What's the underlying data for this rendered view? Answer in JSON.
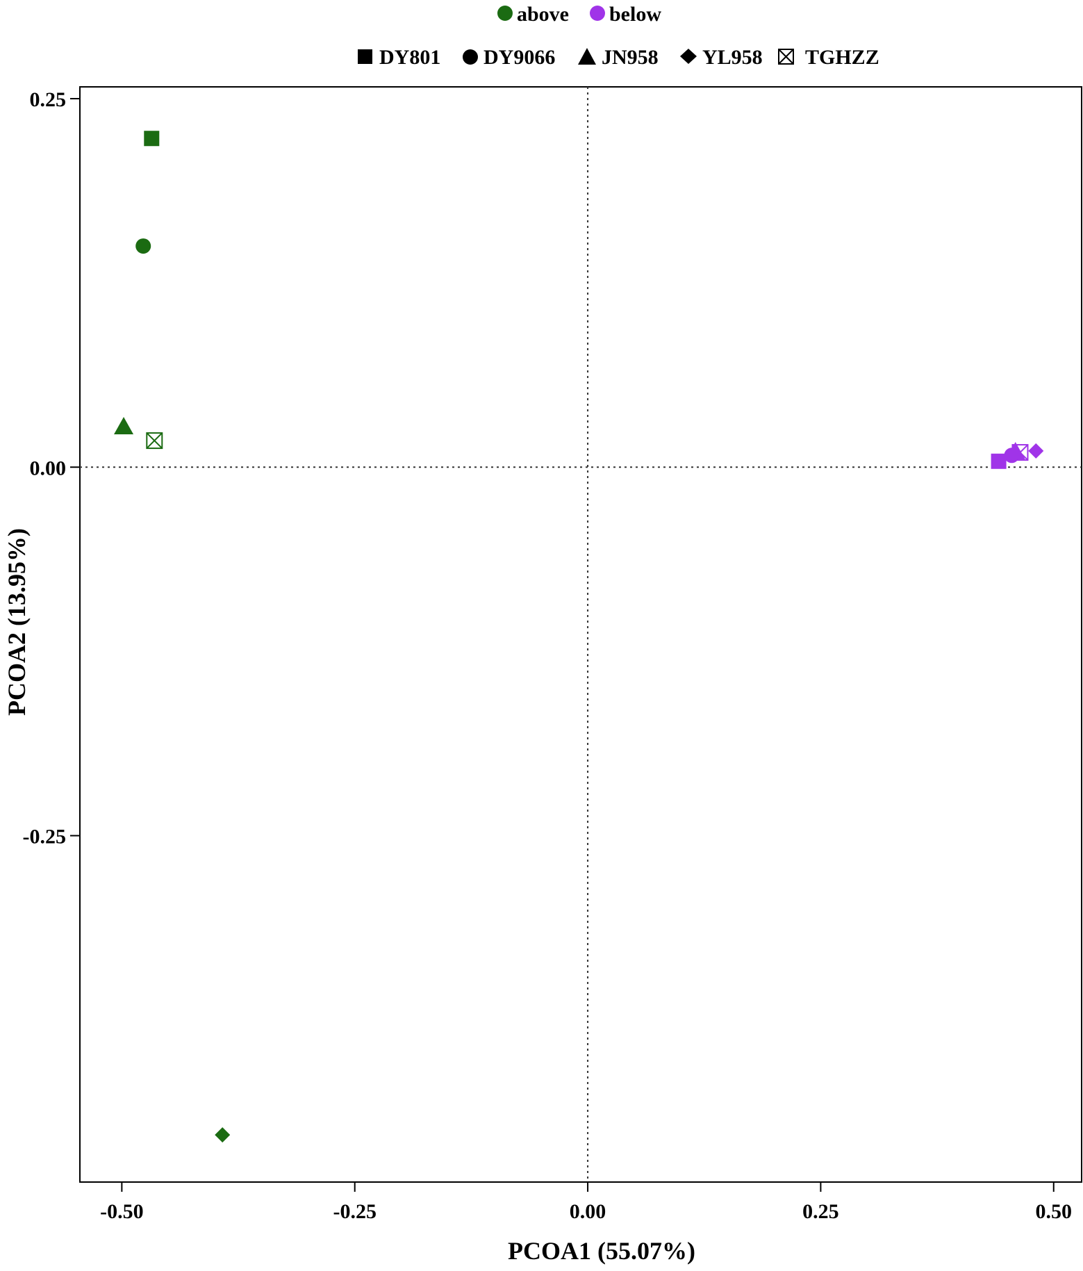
{
  "colors": {
    "above": "#1b6b12",
    "below": "#a034e8",
    "axis": "#000000"
  },
  "legend": {
    "groups": [
      {
        "key": "above",
        "label": "above"
      },
      {
        "key": "below",
        "label": "below"
      }
    ],
    "varieties": [
      {
        "key": "DY801",
        "label": "DY801",
        "shape": "square"
      },
      {
        "key": "DY9066",
        "label": "DY9066",
        "shape": "circle"
      },
      {
        "key": "JN958",
        "label": "JN958",
        "shape": "triangle"
      },
      {
        "key": "YL958",
        "label": "YL958",
        "shape": "diamond"
      },
      {
        "key": "TGHZZ",
        "label": "TGHZZ",
        "shape": "boxed-x"
      }
    ]
  },
  "chart_data": {
    "type": "scatter",
    "title": "",
    "xlabel": "PCOA1 (55.07%)",
    "ylabel": "PCOA2 (13.95%)",
    "xlim": [
      -0.545,
      0.53
    ],
    "ylim": [
      -0.485,
      0.258
    ],
    "xticks": [
      -0.5,
      -0.25,
      0.0,
      0.25,
      0.5
    ],
    "xtick_labels": [
      "-0.50",
      "-0.25",
      "0.00",
      "0.25",
      "0.50"
    ],
    "yticks": [
      -0.25,
      0.0,
      0.25
    ],
    "ytick_labels": [
      "-0.25",
      "0.00",
      "0.25"
    ],
    "reference_lines": {
      "x": 0.0,
      "y": 0.0,
      "style": "dotted"
    },
    "grid": false,
    "legend_position": "top",
    "series": [
      {
        "name": "above",
        "points": [
          {
            "variety": "DY801",
            "x": -0.468,
            "y": 0.223
          },
          {
            "variety": "DY9066",
            "x": -0.477,
            "y": 0.15
          },
          {
            "variety": "JN958",
            "x": -0.498,
            "y": 0.027
          },
          {
            "variety": "TGHZZ",
            "x": -0.465,
            "y": 0.018
          },
          {
            "variety": "YL958",
            "x": -0.392,
            "y": -0.453
          }
        ]
      },
      {
        "name": "below",
        "points": [
          {
            "variety": "DY801",
            "x": 0.441,
            "y": 0.004
          },
          {
            "variety": "DY9066",
            "x": 0.455,
            "y": 0.008
          },
          {
            "variety": "JN958",
            "x": 0.459,
            "y": 0.01
          },
          {
            "variety": "TGHZZ",
            "x": 0.464,
            "y": 0.01
          },
          {
            "variety": "YL958",
            "x": 0.481,
            "y": 0.011
          }
        ]
      }
    ]
  }
}
